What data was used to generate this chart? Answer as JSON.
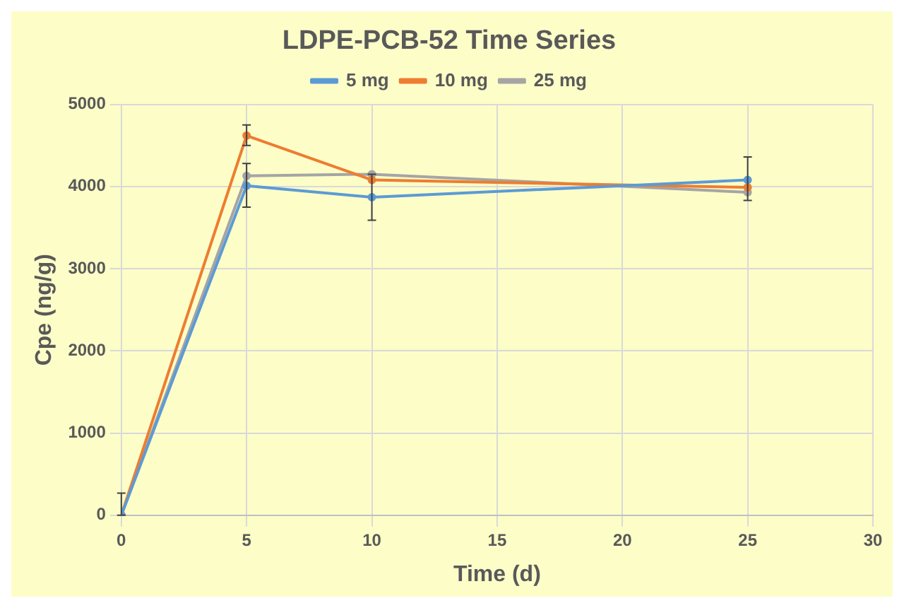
{
  "chart_data": {
    "type": "line",
    "title": "LDPE-PCB-52 Time Series",
    "xlabel": "Time (d)",
    "ylabel": "Cpe (ng/g)",
    "x": [
      0,
      5,
      10,
      25
    ],
    "series": [
      {
        "name": "5 mg",
        "color": "#5b9bd5",
        "values": [
          0,
          4010,
          3870,
          4080
        ],
        "errors": [
          null,
          [
            3750,
            4280
          ],
          [
            3590,
            4150
          ],
          [
            3830,
            4360
          ]
        ]
      },
      {
        "name": "10 mg",
        "color": "#ed7d31",
        "values": [
          0,
          4620,
          4080,
          3990
        ],
        "errors": [
          null,
          [
            4500,
            4750
          ],
          null,
          null
        ]
      },
      {
        "name": "25 mg",
        "color": "#a5a5a5",
        "values": [
          0,
          4130,
          4150,
          3930
        ],
        "errors": [
          [
            0,
            270
          ],
          null,
          null,
          null
        ]
      }
    ],
    "xlim": [
      0,
      30
    ],
    "xticks": [
      0,
      5,
      10,
      15,
      20,
      25,
      30
    ],
    "ylim": [
      0,
      5000
    ],
    "yticks": [
      0,
      1000,
      2000,
      3000,
      4000,
      5000
    ],
    "grid": true,
    "legend": "top",
    "marker": "circle",
    "line_style": "solid"
  }
}
